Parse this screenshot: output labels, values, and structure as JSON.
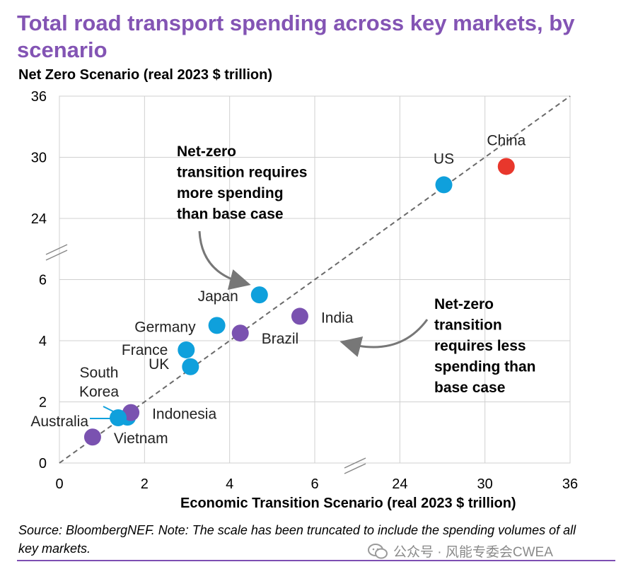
{
  "title": "Total road transport spending across key markets, by scenario",
  "colors": {
    "title": "#8354b4",
    "oecd": "#0fa0dc",
    "emerging": "#7a52b0",
    "china": "#e8372c",
    "grid": "#d0d0d0",
    "diagonal": "#6a6a6a",
    "rule": "#7d4fb3"
  },
  "chart_data": {
    "type": "scatter",
    "xlabel": "Economic Transition Scenario (real 2023 $ trillion)",
    "ylabel": "Net Zero Scenario (real 2023 $ trillion)",
    "x_axis": {
      "segments": [
        {
          "range": [
            0,
            6
          ],
          "ticks": [
            0,
            2,
            4,
            6
          ]
        },
        {
          "range": [
            18,
            36
          ],
          "ticks": [
            24,
            30,
            36
          ]
        }
      ],
      "tick_labels": [
        "0",
        "2",
        "4",
        "6",
        "24",
        "30",
        "36"
      ],
      "truncated": true
    },
    "y_axis": {
      "segments": [
        {
          "range": [
            0,
            6
          ],
          "ticks": [
            0,
            2,
            4,
            6
          ]
        },
        {
          "range": [
            18,
            36
          ],
          "ticks": [
            24,
            30,
            36
          ]
        }
      ],
      "tick_labels": [
        "0",
        "2",
        "4",
        "6",
        "24",
        "30",
        "36"
      ],
      "truncated": true
    },
    "grid": true,
    "reference_line": "y = x",
    "points": [
      {
        "label": "China",
        "x": 31.5,
        "y": 29.1,
        "group": "china"
      },
      {
        "label": "US",
        "x": 27.1,
        "y": 27.3,
        "group": "oecd"
      },
      {
        "label": "Japan",
        "x": 4.7,
        "y": 5.5,
        "group": "oecd"
      },
      {
        "label": "India",
        "x": 5.65,
        "y": 4.8,
        "group": "emerging"
      },
      {
        "label": "Germany",
        "x": 3.7,
        "y": 4.5,
        "group": "oecd"
      },
      {
        "label": "Brazil",
        "x": 4.25,
        "y": 4.25,
        "group": "emerging"
      },
      {
        "label": "France",
        "x": 2.98,
        "y": 3.7,
        "group": "oecd"
      },
      {
        "label": "UK",
        "x": 3.08,
        "y": 3.15,
        "group": "oecd"
      },
      {
        "label": "South Korea",
        "x": 1.6,
        "y": 1.5,
        "group": "oecd"
      },
      {
        "label": "Indonesia",
        "x": 1.68,
        "y": 1.65,
        "group": "emerging"
      },
      {
        "label": "Australia",
        "x": 1.38,
        "y": 1.48,
        "group": "oecd"
      },
      {
        "label": "Vietnam",
        "x": 0.78,
        "y": 0.85,
        "group": "emerging"
      }
    ],
    "annotations": [
      {
        "lines": [
          "Net-zero",
          "transition requires",
          "more spending",
          "than base case"
        ]
      },
      {
        "lines": [
          "Net-zero",
          "transition",
          "requires less",
          "spending than",
          "base case"
        ]
      }
    ]
  },
  "source": "Source: BloombergNEF. Note: The scale has been truncated to include the spending volumes of all key markets.",
  "watermark": "公众号 · 风能专委会CWEA"
}
